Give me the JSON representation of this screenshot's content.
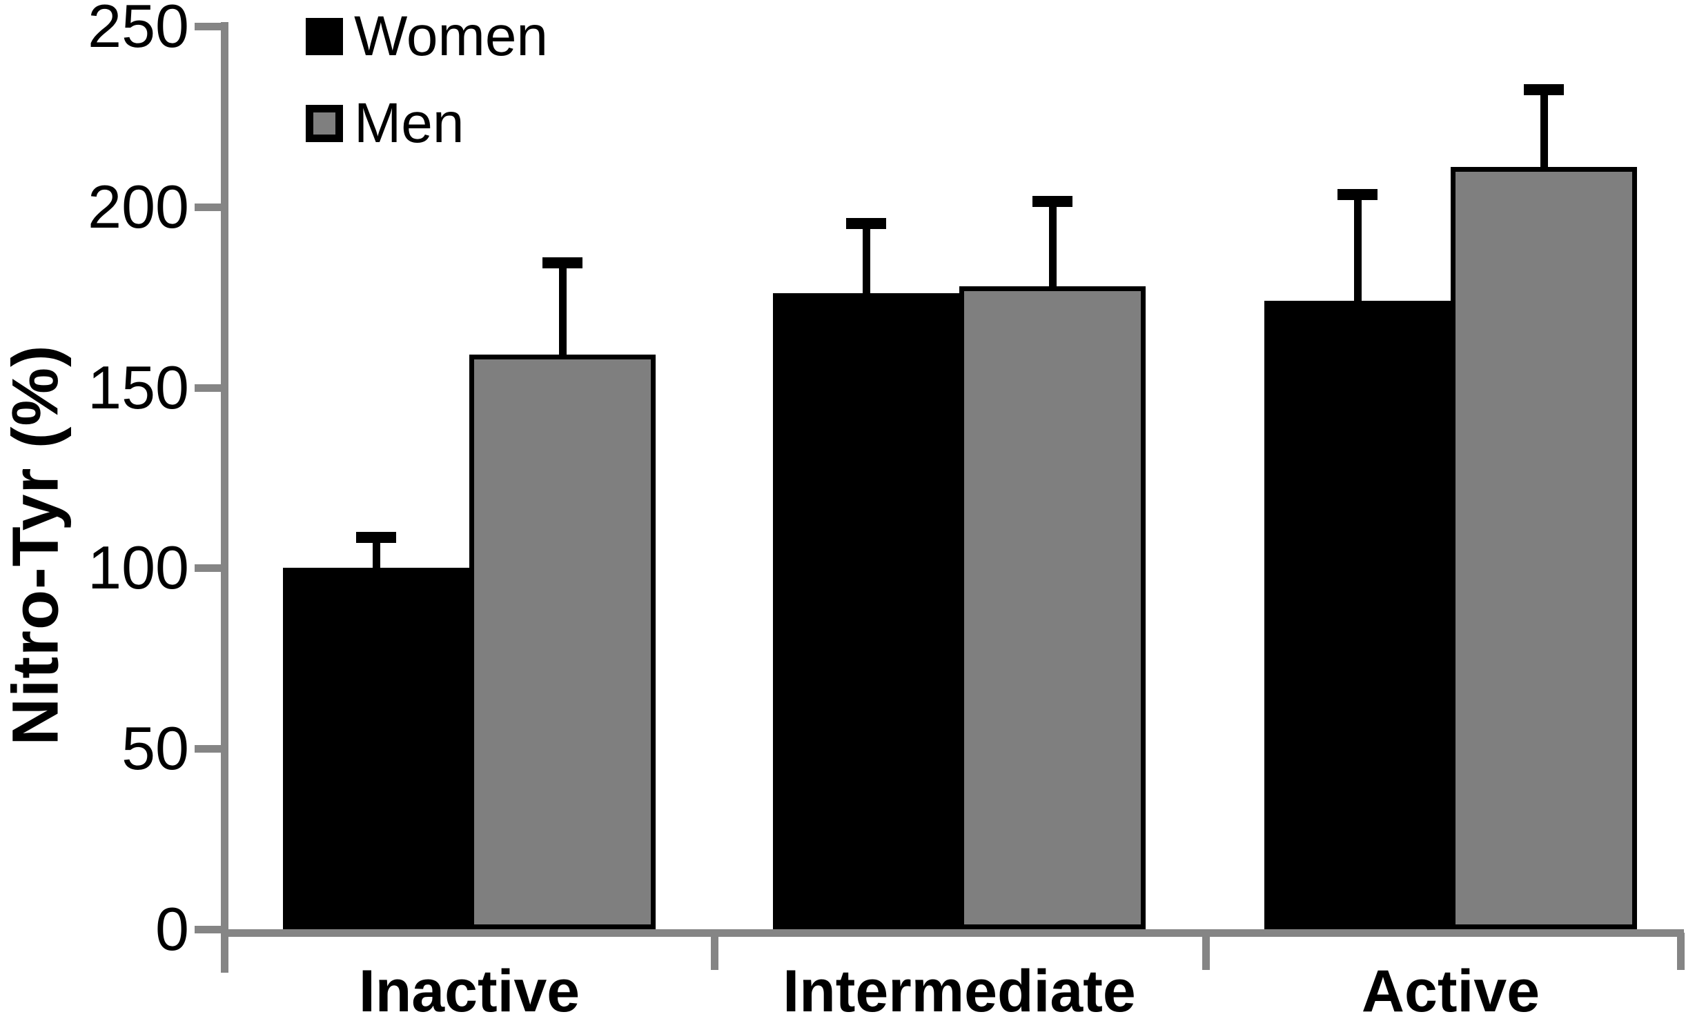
{
  "chart_data": {
    "type": "bar",
    "title": "",
    "categories": [
      "Inactive",
      "Intermediate",
      "Active"
    ],
    "series": [
      {
        "name": "Women",
        "color": "#000000",
        "values": [
          100,
          176,
          174
        ],
        "errors": [
          10,
          21,
          31
        ]
      },
      {
        "name": "Men",
        "color": "#7f7f7f",
        "values": [
          159,
          178,
          211
        ],
        "errors": [
          27,
          25,
          23
        ]
      }
    ],
    "error_bars": "upper-only",
    "xlabel": "",
    "ylabel": "Nitro-Tyr (%)",
    "ylim": [
      0,
      250
    ],
    "y_ticks": [
      0,
      50,
      100,
      150,
      200,
      250
    ],
    "grid": false,
    "legend_position": "top-left-inside"
  },
  "colors": {
    "axis": "#858585",
    "bar_outline": "#000000",
    "women_fill": "#000000",
    "men_fill": "#7f7f7f",
    "text": "#000000",
    "background": "#ffffff"
  }
}
